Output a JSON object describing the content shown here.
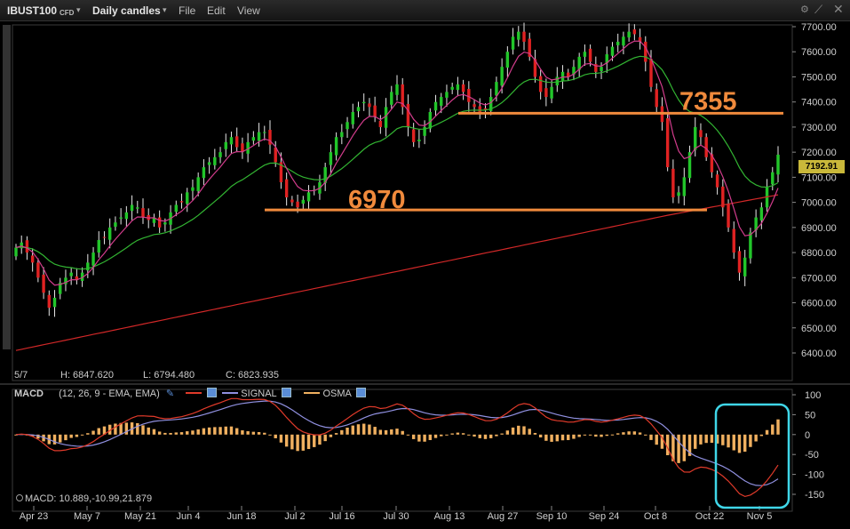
{
  "titlebar": {
    "symbol": "IBUST100",
    "symbol_type": "CFD",
    "period": "Daily candles",
    "menu": [
      "File",
      "Edit",
      "View"
    ],
    "icons": [
      "link-icon",
      "settings-icon",
      "close-icon"
    ]
  },
  "price_panel": {
    "y_ticks": [
      "7700.00",
      "7600.00",
      "7500.00",
      "7400.00",
      "7300.00",
      "7200.00",
      "7100.00",
      "7000.00",
      "6900.00",
      "6800.00",
      "6700.00",
      "6600.00",
      "6500.00",
      "6400.00"
    ],
    "last_price": "7192.91",
    "annotations": [
      "7355",
      "6970"
    ],
    "ohlc": {
      "date": "5/7",
      "high": "H: 6847.620",
      "low": "L: 6794.480",
      "close": "C: 6823.935"
    }
  },
  "macd_panel": {
    "label": "MACD",
    "params": "(12, 26, 9 - EMA, EMA)",
    "signal_label": "SIGNAL",
    "osma_label": "OSMA",
    "y_ticks": [
      "100",
      "50",
      "0",
      "-50",
      "-100",
      "-150"
    ],
    "value_readout": "MACD: 10.889,-10.99,21.879"
  },
  "x_axis": {
    "labels": [
      "Apr 23",
      "May 7",
      "May 21",
      "Jun 4",
      "Jun 18",
      "Jul 2",
      "Jul 16",
      "Jul 30",
      "Aug 13",
      "Aug 27",
      "Sep 10",
      "Sep 24",
      "Oct 8",
      "Oct 22",
      "Nov 5"
    ]
  },
  "chart_data": {
    "type": "candlestick",
    "price_range": [
      6380,
      7760
    ],
    "horizontal_lines": [
      {
        "label": "7355",
        "value": 7355,
        "color": "#f08a3c"
      },
      {
        "label": "6970",
        "value": 6970,
        "color": "#f08a3c"
      }
    ],
    "close": [
      6820,
      6840,
      6800,
      6760,
      6700,
      6640,
      6580,
      6620,
      6680,
      6700,
      6720,
      6690,
      6720,
      6760,
      6800,
      6850,
      6860,
      6900,
      6920,
      6940,
      6960,
      6990,
      6980,
      6940,
      6930,
      6940,
      6900,
      6920,
      6960,
      6990,
      7000,
      7040,
      7060,
      7100,
      7140,
      7160,
      7180,
      7200,
      7240,
      7260,
      7220,
      7200,
      7240,
      7260,
      7280,
      7280,
      7230,
      7160,
      7080,
      7020,
      7000,
      6980,
      7010,
      7040,
      7050,
      7080,
      7140,
      7200,
      7260,
      7280,
      7320,
      7360,
      7380,
      7400,
      7380,
      7340,
      7300,
      7380,
      7440,
      7470,
      7380,
      7300,
      7240,
      7250,
      7300,
      7360,
      7400,
      7420,
      7440,
      7460,
      7470,
      7440,
      7400,
      7380,
      7360,
      7370,
      7420,
      7480,
      7540,
      7600,
      7660,
      7680,
      7640,
      7580,
      7500,
      7440,
      7420,
      7460,
      7500,
      7520,
      7500,
      7540,
      7580,
      7600,
      7560,
      7520,
      7540,
      7590,
      7620,
      7640,
      7660,
      7680,
      7670,
      7640,
      7560,
      7460,
      7380,
      7320,
      7140,
      7020,
      7040,
      7100,
      7200,
      7300,
      7260,
      7180,
      7120,
      7060,
      6980,
      6900,
      6800,
      6720,
      6780,
      6880,
      6940,
      6980,
      7060,
      7120,
      7190
    ],
    "ema_pink_color": "#d23c8c",
    "ema_green_color": "#32b432",
    "sma_red_color": "#d22828",
    "macd_colors": {
      "macd": "#e03a2a",
      "signal": "#9090e0",
      "osma": "#f0b060"
    }
  }
}
